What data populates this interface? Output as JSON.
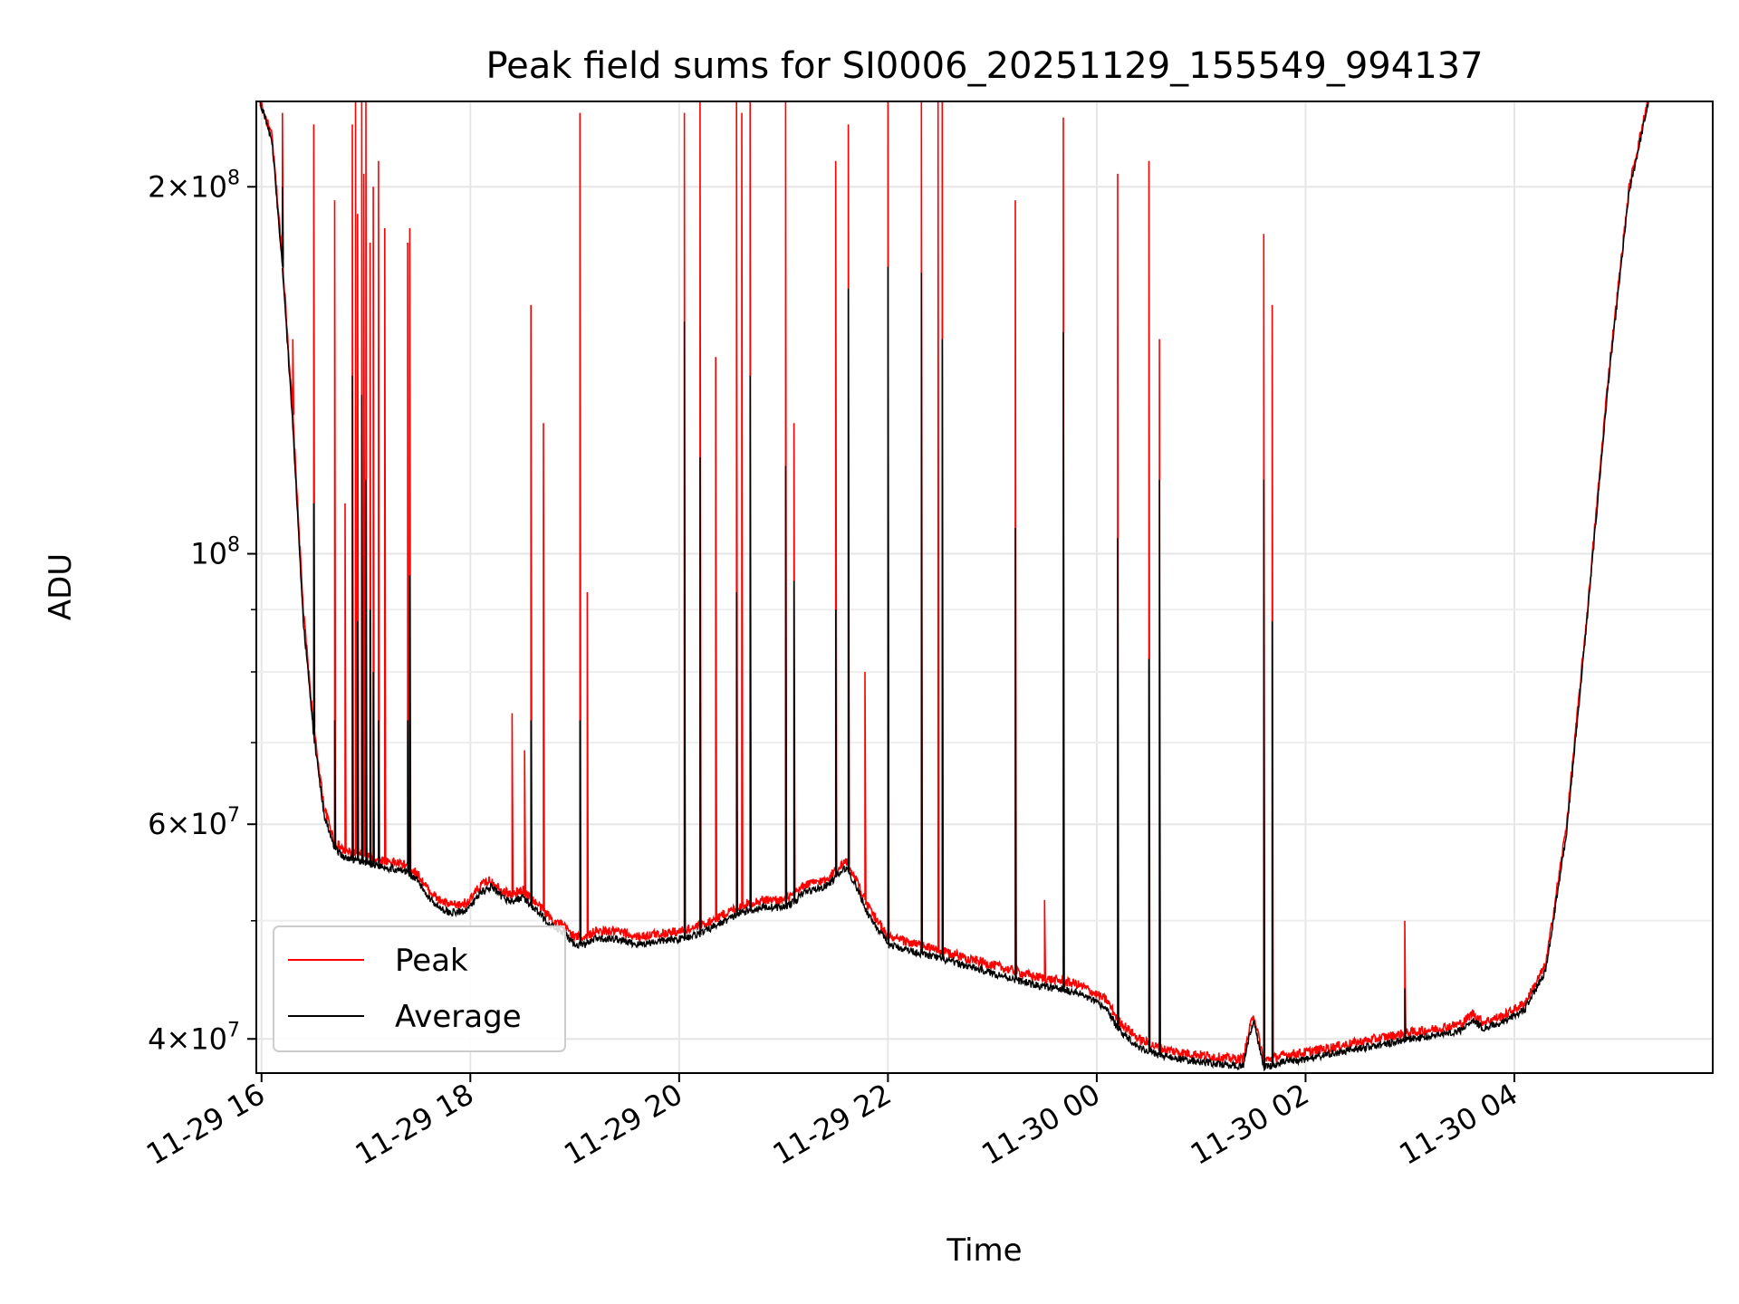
{
  "chart_data": {
    "type": "line",
    "title": "Peak field sums for SI0006_20251129_155549_994137",
    "xlabel": "Time",
    "ylabel": "ADU",
    "yscale": "log",
    "ylim": [
      37500000,
      235000000
    ],
    "x_unit": "hours since 2025-11-29 16:00",
    "xlim": [
      -0.05,
      13.9
    ],
    "grid": true,
    "legend_position": "lower-left",
    "x_ticks": [
      {
        "value": 0,
        "label": "11-29 16"
      },
      {
        "value": 2,
        "label": "11-29 18"
      },
      {
        "value": 4,
        "label": "11-29 20"
      },
      {
        "value": 6,
        "label": "11-29 22"
      },
      {
        "value": 8,
        "label": "11-30 00"
      },
      {
        "value": 10,
        "label": "11-30 02"
      },
      {
        "value": 12,
        "label": "11-30 04"
      }
    ],
    "y_ticks_major": [
      {
        "value": 40000000,
        "mantissa": "4",
        "exp": "7"
      },
      {
        "value": 60000000,
        "mantissa": "6",
        "exp": "7"
      },
      {
        "value": 100000000,
        "mantissa": "",
        "exp": "8"
      },
      {
        "value": 200000000,
        "mantissa": "2",
        "exp": "8"
      }
    ],
    "y_ticks_minor": [
      50000000,
      70000000,
      80000000,
      90000000
    ],
    "series": [
      {
        "name": "Peak",
        "color": "#ff0000",
        "baseline": [
          [
            -0.05,
            240000000
          ],
          [
            0.1,
            220000000
          ],
          [
            0.2,
            175000000
          ],
          [
            0.3,
            130000000
          ],
          [
            0.4,
            90000000
          ],
          [
            0.5,
            72000000
          ],
          [
            0.6,
            62000000
          ],
          [
            0.7,
            58000000
          ],
          [
            0.8,
            57000000
          ],
          [
            1.0,
            56500000
          ],
          [
            1.2,
            56000000
          ],
          [
            1.4,
            55500000
          ],
          [
            1.5,
            54500000
          ],
          [
            1.6,
            53000000
          ],
          [
            1.7,
            52000000
          ],
          [
            1.8,
            51500000
          ],
          [
            1.9,
            51500000
          ],
          [
            2.0,
            52000000
          ],
          [
            2.1,
            53500000
          ],
          [
            2.2,
            54000000
          ],
          [
            2.3,
            53000000
          ],
          [
            2.4,
            52500000
          ],
          [
            2.5,
            53000000
          ],
          [
            2.6,
            52000000
          ],
          [
            2.7,
            51000000
          ],
          [
            2.8,
            50000000
          ],
          [
            2.9,
            49500000
          ],
          [
            3.0,
            48500000
          ],
          [
            3.1,
            48500000
          ],
          [
            3.2,
            49000000
          ],
          [
            3.4,
            49000000
          ],
          [
            3.6,
            48500000
          ],
          [
            3.8,
            48800000
          ],
          [
            4.0,
            49000000
          ],
          [
            4.2,
            49500000
          ],
          [
            4.4,
            50500000
          ],
          [
            4.6,
            51500000
          ],
          [
            4.8,
            52000000
          ],
          [
            5.0,
            52000000
          ],
          [
            5.1,
            52500000
          ],
          [
            5.2,
            53500000
          ],
          [
            5.4,
            54000000
          ],
          [
            5.5,
            55000000
          ],
          [
            5.6,
            56000000
          ],
          [
            5.7,
            54000000
          ],
          [
            5.8,
            51500000
          ],
          [
            5.9,
            50000000
          ],
          [
            6.0,
            48500000
          ],
          [
            6.2,
            48000000
          ],
          [
            6.4,
            47500000
          ],
          [
            6.6,
            47000000
          ],
          [
            6.8,
            46500000
          ],
          [
            7.0,
            46000000
          ],
          [
            7.2,
            45500000
          ],
          [
            7.4,
            45000000
          ],
          [
            7.6,
            44700000
          ],
          [
            7.8,
            44400000
          ],
          [
            7.9,
            44000000
          ],
          [
            8.0,
            43500000
          ],
          [
            8.1,
            43000000
          ],
          [
            8.2,
            41500000
          ],
          [
            8.4,
            40000000
          ],
          [
            8.6,
            39300000
          ],
          [
            8.8,
            39000000
          ],
          [
            9.0,
            38800000
          ],
          [
            9.2,
            38600000
          ],
          [
            9.4,
            38500000
          ],
          [
            9.5,
            42000000
          ],
          [
            9.6,
            38400000
          ],
          [
            9.7,
            38600000
          ],
          [
            9.8,
            38800000
          ],
          [
            10.0,
            39000000
          ],
          [
            10.2,
            39300000
          ],
          [
            10.4,
            39600000
          ],
          [
            10.6,
            39900000
          ],
          [
            10.8,
            40200000
          ],
          [
            11.0,
            40500000
          ],
          [
            11.2,
            40700000
          ],
          [
            11.4,
            41000000
          ],
          [
            11.5,
            41200000
          ],
          [
            11.6,
            42000000
          ],
          [
            11.7,
            41300000
          ],
          [
            11.9,
            41800000
          ],
          [
            12.1,
            42800000
          ],
          [
            12.3,
            46000000
          ],
          [
            12.5,
            60000000
          ],
          [
            12.7,
            90000000
          ],
          [
            12.9,
            140000000
          ],
          [
            13.1,
            200000000
          ],
          [
            13.3,
            240000000
          ],
          [
            13.9,
            245000000
          ]
        ],
        "spikes": [
          [
            0.2,
            230000000
          ],
          [
            0.3,
            150000000
          ],
          [
            0.5,
            225000000
          ],
          [
            0.7,
            195000000
          ],
          [
            0.8,
            110000000
          ],
          [
            0.87,
            225000000
          ],
          [
            0.9,
            235000000
          ],
          [
            0.92,
            190000000
          ],
          [
            0.96,
            235000000
          ],
          [
            0.98,
            205000000
          ],
          [
            1.0,
            235000000
          ],
          [
            1.04,
            180000000
          ],
          [
            1.07,
            200000000
          ],
          [
            1.12,
            210000000
          ],
          [
            1.18,
            185000000
          ],
          [
            1.4,
            180000000
          ],
          [
            1.42,
            185000000
          ],
          [
            2.4,
            74000000
          ],
          [
            2.52,
            69000000
          ],
          [
            2.58,
            160000000
          ],
          [
            2.7,
            128000000
          ],
          [
            3.05,
            230000000
          ],
          [
            3.12,
            93000000
          ],
          [
            4.05,
            230000000
          ],
          [
            4.2,
            235000000
          ],
          [
            4.35,
            145000000
          ],
          [
            4.55,
            235000000
          ],
          [
            4.6,
            230000000
          ],
          [
            4.68,
            235000000
          ],
          [
            5.02,
            235000000
          ],
          [
            5.1,
            128000000
          ],
          [
            5.5,
            210000000
          ],
          [
            5.62,
            225000000
          ],
          [
            5.78,
            80000000
          ],
          [
            6.0,
            235000000
          ],
          [
            6.32,
            235000000
          ],
          [
            6.48,
            235000000
          ],
          [
            6.52,
            235000000
          ],
          [
            7.22,
            195000000
          ],
          [
            7.5,
            52000000
          ],
          [
            7.68,
            228000000
          ],
          [
            8.2,
            205000000
          ],
          [
            8.5,
            210000000
          ],
          [
            8.6,
            150000000
          ],
          [
            9.6,
            183000000
          ],
          [
            9.68,
            160000000
          ],
          [
            10.95,
            50000000
          ]
        ]
      },
      {
        "name": "Average",
        "color": "#000000",
        "baseline": [
          [
            -0.05,
            240000000
          ],
          [
            0.1,
            218000000
          ],
          [
            0.2,
            172000000
          ],
          [
            0.3,
            127000000
          ],
          [
            0.4,
            88000000
          ],
          [
            0.5,
            71000000
          ],
          [
            0.6,
            61000000
          ],
          [
            0.7,
            57300000
          ],
          [
            0.8,
            56300000
          ],
          [
            1.0,
            55800000
          ],
          [
            1.2,
            55300000
          ],
          [
            1.4,
            54800000
          ],
          [
            1.5,
            53800000
          ],
          [
            1.6,
            52300000
          ],
          [
            1.7,
            51300000
          ],
          [
            1.8,
            50800000
          ],
          [
            1.9,
            50800000
          ],
          [
            2.0,
            51300000
          ],
          [
            2.1,
            52800000
          ],
          [
            2.2,
            53300000
          ],
          [
            2.3,
            52300000
          ],
          [
            2.4,
            51800000
          ],
          [
            2.5,
            52300000
          ],
          [
            2.6,
            51300000
          ],
          [
            2.7,
            50300000
          ],
          [
            2.8,
            49300000
          ],
          [
            2.9,
            48800000
          ],
          [
            3.0,
            47800000
          ],
          [
            3.1,
            47800000
          ],
          [
            3.2,
            48300000
          ],
          [
            3.4,
            48300000
          ],
          [
            3.6,
            47800000
          ],
          [
            3.8,
            48100000
          ],
          [
            4.0,
            48300000
          ],
          [
            4.2,
            48800000
          ],
          [
            4.4,
            49800000
          ],
          [
            4.6,
            50800000
          ],
          [
            4.8,
            51300000
          ],
          [
            5.0,
            51300000
          ],
          [
            5.1,
            51800000
          ],
          [
            5.2,
            52800000
          ],
          [
            5.4,
            53300000
          ],
          [
            5.5,
            54300000
          ],
          [
            5.6,
            55300000
          ],
          [
            5.7,
            53300000
          ],
          [
            5.8,
            50800000
          ],
          [
            5.9,
            49300000
          ],
          [
            6.0,
            47800000
          ],
          [
            6.2,
            47300000
          ],
          [
            6.4,
            46800000
          ],
          [
            6.6,
            46300000
          ],
          [
            6.8,
            45800000
          ],
          [
            7.0,
            45300000
          ],
          [
            7.2,
            44800000
          ],
          [
            7.4,
            44300000
          ],
          [
            7.6,
            44000000
          ],
          [
            7.8,
            43700000
          ],
          [
            7.9,
            43300000
          ],
          [
            8.0,
            42800000
          ],
          [
            8.1,
            42300000
          ],
          [
            8.2,
            40800000
          ],
          [
            8.4,
            39400000
          ],
          [
            8.6,
            38800000
          ],
          [
            8.8,
            38500000
          ],
          [
            9.0,
            38300000
          ],
          [
            9.2,
            38100000
          ],
          [
            9.4,
            38000000
          ],
          [
            9.5,
            41500000
          ],
          [
            9.6,
            37900000
          ],
          [
            9.7,
            38100000
          ],
          [
            9.8,
            38300000
          ],
          [
            10.0,
            38500000
          ],
          [
            10.2,
            38800000
          ],
          [
            10.4,
            39100000
          ],
          [
            10.6,
            39400000
          ],
          [
            10.8,
            39700000
          ],
          [
            11.0,
            40000000
          ],
          [
            11.2,
            40200000
          ],
          [
            11.4,
            40500000
          ],
          [
            11.5,
            40700000
          ],
          [
            11.6,
            41500000
          ],
          [
            11.7,
            40800000
          ],
          [
            11.9,
            41300000
          ],
          [
            12.1,
            42300000
          ],
          [
            12.3,
            45500000
          ],
          [
            12.5,
            59000000
          ],
          [
            12.7,
            89000000
          ],
          [
            12.9,
            138000000
          ],
          [
            13.1,
            198000000
          ],
          [
            13.3,
            238000000
          ],
          [
            13.9,
            243000000
          ]
        ],
        "spikes": [
          [
            0.2,
            200000000
          ],
          [
            0.5,
            110000000
          ],
          [
            0.7,
            73000000
          ],
          [
            0.87,
            140000000
          ],
          [
            0.92,
            88000000
          ],
          [
            0.96,
            135000000
          ],
          [
            1.0,
            115000000
          ],
          [
            1.04,
            90000000
          ],
          [
            1.07,
            80000000
          ],
          [
            1.12,
            73000000
          ],
          [
            1.4,
            73000000
          ],
          [
            1.42,
            96000000
          ],
          [
            2.58,
            73000000
          ],
          [
            3.05,
            73000000
          ],
          [
            4.05,
            155000000
          ],
          [
            4.2,
            120000000
          ],
          [
            4.55,
            93000000
          ],
          [
            4.68,
            140000000
          ],
          [
            5.02,
            118000000
          ],
          [
            5.1,
            95000000
          ],
          [
            5.5,
            90000000
          ],
          [
            5.62,
            165000000
          ],
          [
            6.0,
            172000000
          ],
          [
            6.32,
            170000000
          ],
          [
            6.52,
            150000000
          ],
          [
            7.22,
            105000000
          ],
          [
            7.68,
            152000000
          ],
          [
            8.2,
            103000000
          ],
          [
            8.5,
            82000000
          ],
          [
            8.6,
            115000000
          ],
          [
            9.6,
            115000000
          ],
          [
            9.68,
            88000000
          ],
          [
            10.95,
            44000000
          ]
        ]
      }
    ]
  }
}
